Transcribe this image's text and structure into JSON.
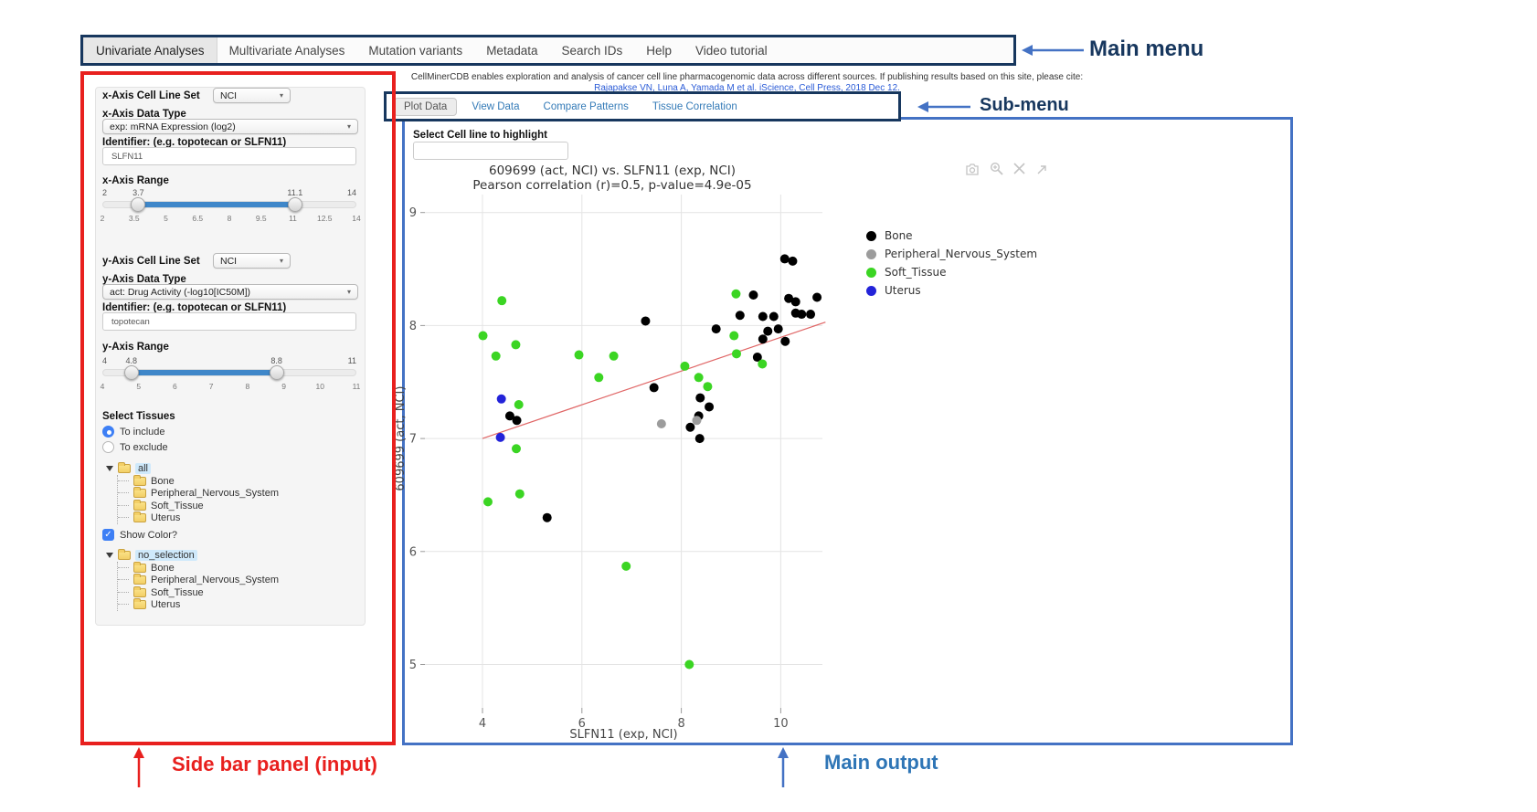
{
  "annotations": {
    "main_menu": "Main menu",
    "sub_menu": "Sub-menu",
    "sidebar": "Side bar panel (input)",
    "main_output": "Main output",
    "colors": {
      "red": "#e8201e",
      "navy": "#17375e",
      "blue": "#4472c4",
      "light_blue": "#2e75b6"
    }
  },
  "main_menu": {
    "items": [
      "Univariate Analyses",
      "Multivariate Analyses",
      "Mutation variants",
      "Metadata",
      "Search IDs",
      "Help",
      "Video tutorial"
    ],
    "active_index": 0
  },
  "citation": {
    "text": "CellMinerCDB enables exploration and analysis of cancer cell line pharmacogenomic data across different sources. If publishing results based on this site, please cite:",
    "link": "Rajapakse VN, Luna A, Yamada M et al. iScience, Cell Press, 2018 Dec 12."
  },
  "submenu": {
    "tabs": [
      "Plot Data",
      "View Data",
      "Compare Patterns",
      "Tissue Correlation"
    ],
    "active_index": 0
  },
  "sidebar": {
    "x_axis": {
      "cell_line_set_label": "x-Axis Cell Line Set",
      "cell_line_set_value": "NCI",
      "data_type_label": "x-Axis Data Type",
      "data_type_value": "exp: mRNA Expression (log2)",
      "identifier_label": "Identifier: (e.g. topotecan or SLFN11)",
      "identifier_value": "SLFN11",
      "range_label": "x-Axis Range",
      "range": {
        "min": 2,
        "max": 14,
        "from": 3.7,
        "to": 11.1,
        "ticks": [
          "2",
          "3.5",
          "5",
          "6.5",
          "8",
          "9.5",
          "11",
          "12.5",
          "14"
        ]
      }
    },
    "y_axis": {
      "cell_line_set_label": "y-Axis Cell Line Set",
      "cell_line_set_value": "NCI",
      "data_type_label": "y-Axis Data Type",
      "data_type_value": "act: Drug Activity (-log10[IC50M])",
      "identifier_label": "Identifier: (e.g. topotecan or SLFN11)",
      "identifier_value": "topotecan",
      "range_label": "y-Axis Range",
      "range": {
        "min": 4,
        "max": 11,
        "from": 4.8,
        "to": 8.8,
        "ticks": [
          "4",
          "5",
          "6",
          "7",
          "8",
          "9",
          "10",
          "11"
        ]
      }
    },
    "tissues": {
      "label": "Select Tissues",
      "include_option": "To include",
      "exclude_option": "To exclude",
      "selected_option": "include",
      "tree_root": "all",
      "tree_items": [
        "Bone",
        "Peripheral_Nervous_System",
        "Soft_Tissue",
        "Uterus"
      ],
      "show_color_label": "Show Color?",
      "show_color_checked": true,
      "color_tree_root": "no_selection",
      "color_tree_items": [
        "Bone",
        "Peripheral_Nervous_System",
        "Soft_Tissue",
        "Uterus"
      ]
    }
  },
  "main_output": {
    "highlight_label": "Select Cell line to highlight",
    "highlight_value": ""
  },
  "chart_data": {
    "type": "scatter",
    "title": "609699 (act, NCI) vs. SLFN11 (exp, NCI)",
    "subtitle": "Pearson correlation (r)=0.5, p-value=4.9e-05",
    "xlabel": "SLFN11 (exp, NCI)",
    "ylabel": "609699 (act, NCI)",
    "xlim": [
      3.3,
      11.3
    ],
    "ylim": [
      4.6,
      9.15
    ],
    "x_ticks": [
      4,
      6,
      8,
      10
    ],
    "y_ticks": [
      5,
      6,
      7,
      8,
      9
    ],
    "grid": true,
    "legend_position": "right",
    "grid_color": "#e4e4e4",
    "trend_line": {
      "x": [
        4.0,
        10.9
      ],
      "y": [
        7.0,
        8.03
      ],
      "color": "#e06666"
    },
    "series": [
      {
        "name": "Bone",
        "color": "#000000",
        "points": [
          [
            4.55,
            7.2
          ],
          [
            4.69,
            7.16
          ],
          [
            5.3,
            6.3
          ],
          [
            7.28,
            8.04
          ],
          [
            7.45,
            7.45
          ],
          [
            8.38,
            7.36
          ],
          [
            8.35,
            7.2
          ],
          [
            8.56,
            7.28
          ],
          [
            8.18,
            7.1
          ],
          [
            8.37,
            7.0
          ],
          [
            8.7,
            7.97
          ],
          [
            9.18,
            8.09
          ],
          [
            9.45,
            8.27
          ],
          [
            9.64,
            8.08
          ],
          [
            9.86,
            8.08
          ],
          [
            10.08,
            8.59
          ],
          [
            10.24,
            8.57
          ],
          [
            10.16,
            8.24
          ],
          [
            10.3,
            8.21
          ],
          [
            10.73,
            8.25
          ],
          [
            10.3,
            8.11
          ],
          [
            10.42,
            8.1
          ],
          [
            10.6,
            8.1
          ],
          [
            9.74,
            7.95
          ],
          [
            9.95,
            7.97
          ],
          [
            9.64,
            7.88
          ],
          [
            10.09,
            7.86
          ],
          [
            9.53,
            7.72
          ]
        ]
      },
      {
        "name": "Peripheral_Nervous_System",
        "color": "#9c9c9c",
        "points": [
          [
            7.6,
            7.13
          ],
          [
            8.31,
            7.16
          ]
        ]
      },
      {
        "name": "Soft_Tissue",
        "color": "#3bd523",
        "points": [
          [
            4.39,
            8.22
          ],
          [
            4.01,
            7.91
          ],
          [
            4.27,
            7.73
          ],
          [
            4.67,
            7.83
          ],
          [
            5.94,
            7.74
          ],
          [
            6.64,
            7.73
          ],
          [
            6.34,
            7.54
          ],
          [
            4.73,
            7.3
          ],
          [
            4.68,
            6.91
          ],
          [
            4.11,
            6.44
          ],
          [
            4.75,
            6.51
          ],
          [
            6.89,
            5.87
          ],
          [
            8.16,
            5.0
          ],
          [
            8.07,
            7.64
          ],
          [
            8.35,
            7.54
          ],
          [
            8.53,
            7.46
          ],
          [
            9.06,
            7.91
          ],
          [
            9.11,
            7.75
          ],
          [
            9.1,
            8.28
          ],
          [
            9.63,
            7.66
          ]
        ]
      },
      {
        "name": "Uterus",
        "color": "#2323d9",
        "points": [
          [
            4.38,
            7.35
          ],
          [
            4.36,
            7.01
          ]
        ]
      }
    ]
  }
}
